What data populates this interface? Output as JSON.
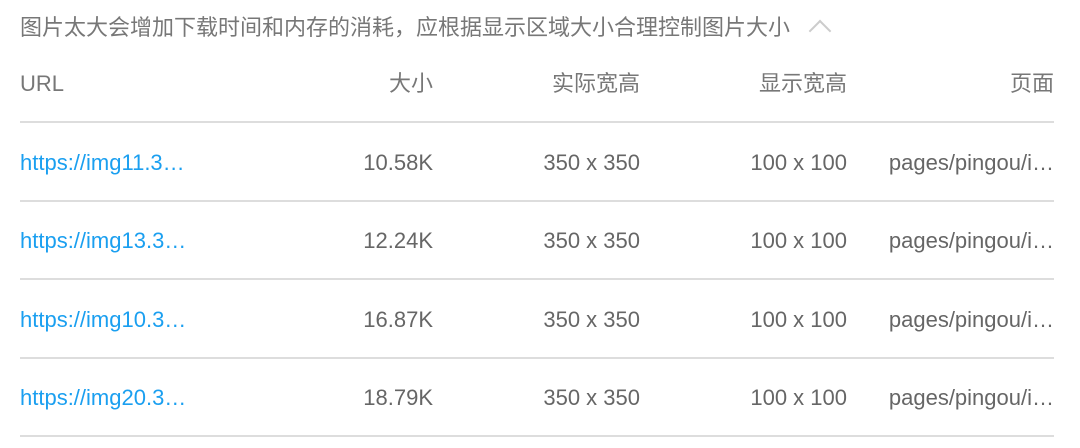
{
  "title": "图片太大会增加下载时间和内存的消耗，应根据显示区域大小合理控制图片大小",
  "collapse_icon": "chevron-up-icon",
  "link_color": "#1a9ff0",
  "columns": [
    "URL",
    "大小",
    "实际宽高",
    "显示宽高",
    "页面"
  ],
  "rows": [
    [
      "https://img11.3…",
      "10.58K",
      "350 x 350",
      "100 x 100",
      "pages/pingou/i…"
    ],
    [
      "https://img13.3…",
      "12.24K",
      "350 x 350",
      "100 x 100",
      "pages/pingou/i…"
    ],
    [
      "https://img10.3…",
      "16.87K",
      "350 x 350",
      "100 x 100",
      "pages/pingou/i…"
    ],
    [
      "https://img20.3…",
      "18.79K",
      "350 x 350",
      "100 x 100",
      "pages/pingou/i…"
    ]
  ]
}
